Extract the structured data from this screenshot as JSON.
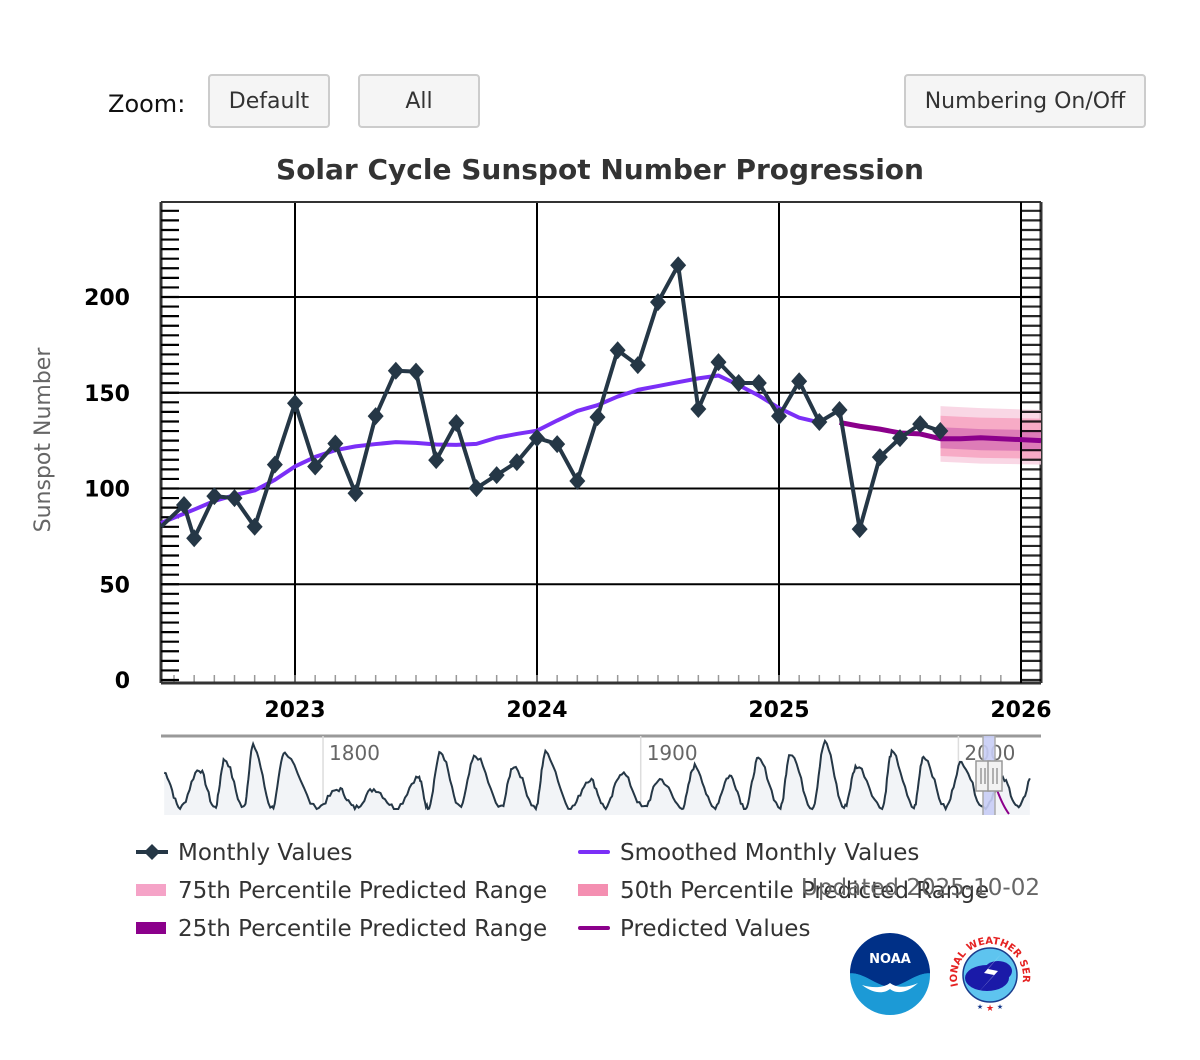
{
  "toolbar": {
    "zoom_label": "Zoom:",
    "default_label": "Default",
    "all_label": "All",
    "numbering_label": "Numbering On/Off"
  },
  "footer": {
    "updated_text": "Updated 2025-10-02",
    "logos": [
      "NOAA",
      "National Weather Service"
    ]
  },
  "colors": {
    "monthly": "#253746",
    "smoothed": "#7b2ff7",
    "predicted": "#8b008b",
    "p75": "#f5a3c7",
    "p50": "#f48fb1",
    "p25": "#8b008b",
    "navigator_mask": "#c8cdf5"
  },
  "chart_data": {
    "type": "line",
    "title": "Solar Cycle Sunspot Number Progression",
    "xlabel": "",
    "ylabel": "Sunspot Number",
    "ylim": [
      0,
      250
    ],
    "yticks": [
      0,
      50,
      100,
      150,
      200
    ],
    "xlim": [
      "2022-07",
      "2026-01"
    ],
    "xticks": [
      "2023",
      "2024",
      "2025",
      "2026"
    ],
    "grid": true,
    "legend_position": "bottom",
    "series": [
      {
        "name": "Monthly Values",
        "style": "line-diamond",
        "x": [
          "2022-07",
          "2022-08",
          "2022-09",
          "2022-10",
          "2022-11",
          "2022-12",
          "2023-01",
          "2023-02",
          "2023-03",
          "2023-04",
          "2023-05",
          "2023-06",
          "2023-07",
          "2023-08",
          "2023-09",
          "2023-10",
          "2023-11",
          "2023-12",
          "2024-01",
          "2024-02",
          "2024-03",
          "2024-04",
          "2024-05",
          "2024-06",
          "2024-07",
          "2024-08",
          "2024-09",
          "2024-10",
          "2024-11",
          "2024-12",
          "2025-01",
          "2025-02",
          "2025-03",
          "2025-04",
          "2025-05",
          "2025-06",
          "2025-07",
          "2025-08",
          "2025-09"
        ],
        "values": [
          91.4,
          74.0,
          96.0,
          95.0,
          80.0,
          112.5,
          144.5,
          111.5,
          123.5,
          97.5,
          137.8,
          161.5,
          161.0,
          114.8,
          134.2,
          100.2,
          107.0,
          113.8,
          126.4,
          123.2,
          103.9,
          137.3,
          172.2,
          164.4,
          197.3,
          216.6,
          141.5,
          166.0,
          155.1,
          155.1,
          137.8,
          156.0,
          134.7,
          141.0,
          78.8,
          116.4,
          126.3,
          133.6,
          130.0
        ]
      },
      {
        "name": "Smoothed Monthly Values",
        "style": "line",
        "x": [
          "2022-07",
          "2022-08",
          "2022-09",
          "2022-10",
          "2022-11",
          "2022-12",
          "2023-01",
          "2023-02",
          "2023-03",
          "2023-04",
          "2023-05",
          "2023-06",
          "2023-07",
          "2023-08",
          "2023-09",
          "2023-10",
          "2023-11",
          "2023-12",
          "2024-01",
          "2024-02",
          "2024-03",
          "2024-04",
          "2024-05",
          "2024-06",
          "2024-07",
          "2024-08",
          "2024-09",
          "2024-10",
          "2024-11",
          "2024-12",
          "2025-01",
          "2025-02",
          "2025-03"
        ],
        "values": [
          82.0,
          89.0,
          93.5,
          96.5,
          99.0,
          104.5,
          111.5,
          116.5,
          120.0,
          122.0,
          123.2,
          124.2,
          123.8,
          123.0,
          122.8,
          123.3,
          126.5,
          128.5,
          130.2,
          135.5,
          140.5,
          143.5,
          148.0,
          151.5,
          153.5,
          155.5,
          157.5,
          159.0,
          154.0,
          148.5,
          142.0,
          137.0,
          134.5
        ]
      },
      {
        "name": "Predicted Values",
        "style": "line",
        "x": [
          "2025-04",
          "2025-05",
          "2025-06",
          "2025-07",
          "2025-08",
          "2025-09",
          "2025-10",
          "2025-11",
          "2025-12",
          "2026-01"
        ],
        "values": [
          134.5,
          132.5,
          131.0,
          129.0,
          128.5,
          126.0,
          126.0,
          126.5,
          126.0,
          125.0
        ]
      },
      {
        "name": "75th Percentile Predicted Range",
        "style": "band",
        "x": [
          "2025-10",
          "2025-11",
          "2025-12",
          "2026-01"
        ],
        "lower": [
          114.0,
          113.5,
          113.0,
          112.5
        ],
        "upper": [
          143.0,
          142.5,
          142.0,
          141.0
        ]
      },
      {
        "name": "50th Percentile Predicted Range",
        "style": "band",
        "x": [
          "2025-10",
          "2025-11",
          "2025-12",
          "2026-01"
        ],
        "lower": [
          117.0,
          116.5,
          116.0,
          115.5
        ],
        "upper": [
          138.0,
          137.5,
          137.0,
          136.5
        ]
      },
      {
        "name": "25th Percentile Predicted Range",
        "style": "band",
        "x": [
          "2025-10",
          "2025-11",
          "2025-12",
          "2026-01"
        ],
        "lower": [
          121.0,
          120.5,
          120.0,
          119.5
        ],
        "upper": [
          132.0,
          131.5,
          131.0,
          130.5
        ]
      }
    ],
    "legend": [
      {
        "label": "Monthly Values",
        "key": "monthly",
        "symbol": "line-diamond"
      },
      {
        "label": "Smoothed Monthly Values",
        "key": "smoothed",
        "symbol": "line"
      },
      {
        "label": "75th Percentile Predicted Range",
        "key": "p75",
        "symbol": "rect"
      },
      {
        "label": "50th Percentile Predicted Range",
        "key": "p50",
        "symbol": "rect"
      },
      {
        "label": "25th Percentile Predicted Range",
        "key": "p25",
        "symbol": "rect"
      },
      {
        "label": "Predicted Values",
        "key": "predicted",
        "symbol": "line"
      }
    ],
    "navigator": {
      "xlim": [
        1749,
        2026
      ],
      "ticks": [
        "1800",
        "1900",
        "2000"
      ],
      "selected_range": [
        "2022-07",
        "2026-01"
      ],
      "cycle_peaks": [
        [
          1750,
          0.55
        ],
        [
          1761,
          0.6
        ],
        [
          1769,
          0.75
        ],
        [
          1778,
          0.95
        ],
        [
          1788,
          0.85
        ],
        [
          1805,
          0.3
        ],
        [
          1816,
          0.3
        ],
        [
          1830,
          0.48
        ],
        [
          1837,
          0.85
        ],
        [
          1848,
          0.8
        ],
        [
          1860,
          0.65
        ],
        [
          1870,
          0.85
        ],
        [
          1884,
          0.45
        ],
        [
          1894,
          0.55
        ],
        [
          1906,
          0.45
        ],
        [
          1917,
          0.65
        ],
        [
          1928,
          0.5
        ],
        [
          1937,
          0.75
        ],
        [
          1947,
          0.85
        ],
        [
          1958,
          1.0
        ],
        [
          1968,
          0.65
        ],
        [
          1979,
          0.85
        ],
        [
          1989,
          0.8
        ],
        [
          2001,
          0.7
        ],
        [
          2014,
          0.45
        ],
        [
          2024,
          0.6
        ]
      ],
      "cycle_minima": [
        1755,
        1766,
        1775,
        1784,
        1798,
        1810,
        1823,
        1833,
        1843,
        1856,
        1867,
        1878,
        1889,
        1901,
        1913,
        1923,
        1933,
        1944,
        1954,
        1964,
        1976,
        1986,
        1996,
        2008,
        2019
      ]
    }
  }
}
